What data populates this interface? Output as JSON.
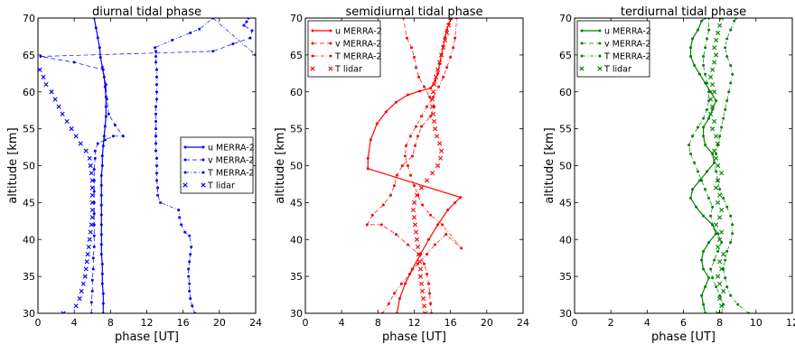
{
  "chart_data": [
    {
      "type": "line",
      "title": "diurnal tidal phase",
      "xlabel": "phase [UT]",
      "ylabel": "altitude [km]",
      "xlim": [
        0,
        24
      ],
      "ylim": [
        30,
        70
      ],
      "xticks": [
        0,
        4,
        8,
        12,
        16,
        20,
        24
      ],
      "yticks": [
        30,
        35,
        40,
        45,
        50,
        55,
        60,
        65,
        70
      ],
      "grid": false,
      "legend_position": "center-right",
      "color": "#0000ff",
      "series": [
        {
          "name": "u MERRA-2",
          "style": "solid-dot",
          "x": [
            7.2,
            7.2,
            7.2,
            7.1,
            7.1,
            7.1,
            7.0,
            7.0,
            7.0,
            7.0,
            7.0,
            7.0,
            7.0,
            7.0,
            7.0,
            7.1,
            7.1,
            7.2,
            7.3,
            7.4,
            7.5,
            7.5,
            7.5,
            7.4,
            7.3,
            7.1,
            6.9,
            6.8,
            6.6,
            6.4,
            6.2
          ],
          "y": [
            30,
            31.33,
            32.67,
            34,
            35.33,
            36.67,
            38,
            39.33,
            40.67,
            42,
            43.33,
            44.67,
            46,
            47.33,
            48.67,
            50,
            51.33,
            52.67,
            54,
            55.33,
            56.67,
            58,
            59.33,
            60.67,
            62,
            63.33,
            64.67,
            66,
            67.33,
            68.67,
            70
          ]
        },
        {
          "name": "v MERRA-2",
          "style": "dashed-dot",
          "x": [
            5.9,
            5.9,
            6.0,
            6.0,
            6.1,
            6.1,
            6.2,
            6.2,
            6.2,
            6.2,
            6.2,
            6.2,
            6.2,
            6.2,
            6.3,
            6.3,
            6.6,
            7.4,
            8.3,
            9.4,
            8.5,
            7.8,
            7.6,
            7.5,
            7.2,
            4.0,
            0.3,
            19.3,
            21.5,
            23.4,
            23.6,
            22.7,
            23.0,
            23.2
          ],
          "y": [
            30,
            31.5,
            33,
            34.5,
            36,
            37.5,
            39,
            40.5,
            42,
            43.5,
            45,
            46.5,
            48,
            49.5,
            51,
            52,
            53,
            53.5,
            54,
            54,
            55.5,
            57,
            59,
            61,
            63,
            64,
            64.8,
            65.5,
            66.5,
            67.3,
            68.3,
            69,
            69.5,
            70
          ]
        },
        {
          "name": "T MERRA-2",
          "style": "dashdot-dot",
          "x": [
            17.3,
            17.0,
            16.8,
            16.7,
            16.7,
            16.6,
            16.6,
            16.7,
            16.8,
            16.9,
            16.7,
            16.2,
            15.8,
            15.6,
            15.5,
            13.5,
            13.2,
            13.2,
            13.1,
            13.1,
            13.1,
            13.1,
            13.0,
            13.0,
            13.0,
            13.0,
            13.0,
            13.0,
            13.0,
            13.1,
            13.1,
            13.1,
            13.1,
            13.1,
            13.0,
            13.0,
            13.0,
            12.9,
            14.8,
            16.8,
            17.8,
            19.3,
            24.0
          ],
          "y": [
            30,
            31,
            32,
            33,
            34,
            35,
            36,
            37,
            38,
            39,
            40.5,
            41,
            42,
            43,
            44,
            45,
            46,
            47,
            48,
            49,
            50,
            51,
            52,
            53,
            54,
            55,
            56,
            57,
            58,
            59,
            60,
            61,
            62,
            63,
            64,
            64.8,
            65.5,
            66,
            67,
            68,
            68.5,
            70,
            65
          ]
        },
        {
          "name": "T lidar",
          "style": "marker-x",
          "x": [
            2.8,
            4.2,
            4.6,
            4.8,
            5.0,
            5.2,
            5.3,
            5.4,
            5.5,
            5.6,
            5.7,
            5.8,
            5.9,
            6.0,
            6.0,
            6.0,
            6.0,
            6.0,
            6.0,
            5.9,
            5.8,
            5.7,
            5.3,
            4.7,
            4.2,
            3.7,
            3.2,
            2.7,
            2.3,
            1.9,
            1.5,
            0.9,
            0.6,
            0.2
          ],
          "y": [
            30,
            31,
            32,
            33,
            34,
            35,
            36,
            37,
            38,
            39,
            40,
            41,
            42,
            43,
            44,
            45,
            46,
            47,
            48,
            49,
            50,
            51,
            52,
            53,
            54,
            55,
            56,
            57,
            58,
            59,
            60,
            61,
            62,
            63
          ]
        }
      ]
    },
    {
      "type": "line",
      "title": "semidiurnal tidal phase",
      "xlabel": "phase [UT]",
      "ylabel": "altitude [km]",
      "xlim": [
        0,
        24
      ],
      "ylim": [
        30,
        70
      ],
      "xticks": [
        0,
        4,
        8,
        12,
        16,
        20,
        24
      ],
      "yticks": [
        30,
        35,
        40,
        45,
        50,
        55,
        60,
        65,
        70
      ],
      "grid": false,
      "legend_position": "upper-left",
      "color": "#ff0000",
      "series": [
        {
          "name": "u MERRA-2",
          "style": "solid-dot",
          "x": [
            10.1,
            10.4,
            11.0,
            11.8,
            12.7,
            13.6,
            14.6,
            15.7,
            16.5,
            17.1,
            6.9,
            6.9,
            7.2,
            7.9,
            8.9,
            10.0,
            11.3,
            12.6,
            13.8,
            14.3,
            14.6,
            14.8,
            15.0,
            15.2,
            15.4,
            15.6,
            15.8,
            16.1
          ],
          "y": [
            30,
            32,
            34,
            36,
            38,
            40,
            42,
            44,
            45,
            45.7,
            49.6,
            51,
            53.5,
            55.7,
            57.3,
            58.6,
            59.6,
            60.1,
            60.5,
            61.5,
            62.5,
            63.8,
            65,
            66.2,
            67.4,
            68.4,
            69.2,
            70
          ]
        },
        {
          "name": "v MERRA-2",
          "style": "dashed-dot",
          "x": [
            13.9,
            13.8,
            13.7,
            13.6,
            13.4,
            13.1,
            12.5,
            11.3,
            10.0,
            8.4,
            6.8,
            7.4,
            8.6,
            9.4,
            9.8,
            10.1,
            10.7,
            11.8,
            12.1,
            12.4,
            12.8,
            13.8,
            14.2,
            13.7,
            13.1,
            12.5,
            12.2,
            12.0,
            11.7,
            11.2,
            10.8
          ],
          "y": [
            30,
            31.3,
            32.7,
            34,
            35.3,
            36.7,
            38,
            39.3,
            40.7,
            42,
            42,
            43.3,
            44.7,
            46,
            47.3,
            48.7,
            50,
            51.3,
            52.7,
            54,
            55.3,
            56.7,
            58,
            59.3,
            60.7,
            62,
            63.3,
            64.7,
            66,
            67.3,
            70
          ]
        },
        {
          "name": "T MERRA-2",
          "style": "dashdot-dot",
          "x": [
            8.5,
            9.2,
            9.8,
            10.6,
            11.5,
            12.4,
            13.4,
            14.3,
            15.5,
            17.2,
            15.1,
            13.8,
            12.9,
            12.4,
            12.0,
            11.6,
            11.3,
            11.0,
            11.1,
            11.6,
            12.2,
            12.8,
            13.4,
            14.1,
            14.7,
            15.2,
            15.6,
            16.0,
            16.3,
            16.5,
            16.7
          ],
          "y": [
            30,
            31.3,
            32.7,
            34,
            35.3,
            36.7,
            38,
            39.3,
            40.7,
            38.8,
            42,
            43.3,
            44.7,
            46,
            47.3,
            48.7,
            50,
            51.3,
            52.7,
            54,
            55.3,
            56.7,
            58,
            59.3,
            60.7,
            62,
            63.3,
            64.7,
            66,
            67.3,
            70
          ]
        },
        {
          "name": "T lidar",
          "style": "marker-x",
          "x": [
            13.2,
            13.1,
            13.0,
            12.9,
            12.8,
            12.7,
            12.7,
            12.6,
            12.5,
            12.4,
            12.3,
            12.2,
            12.1,
            12.0,
            11.9,
            12.0,
            12.3,
            12.8,
            13.4,
            14.0,
            14.6,
            14.9,
            15.0,
            14.8,
            14.5,
            14.3,
            14.2,
            14.1,
            14.0,
            14.0,
            14.1,
            14.2,
            14.4,
            14.6,
            14.8,
            15.0,
            15.2,
            15.4,
            15.6,
            15.8,
            16.0
          ],
          "y": [
            30,
            31,
            32,
            33,
            34,
            35,
            36,
            37,
            38,
            39,
            40,
            41,
            42,
            43,
            44,
            45,
            46,
            47,
            48,
            49,
            50,
            51,
            52,
            53,
            54,
            55,
            56,
            57,
            58,
            59,
            60,
            61,
            62,
            63,
            64,
            65,
            66,
            67,
            68,
            69,
            70
          ]
        }
      ]
    },
    {
      "type": "line",
      "title": "terdiurnal tidal phase",
      "xlabel": "phase [UT]",
      "ylabel": "altitude [km]",
      "xlim": [
        0,
        12
      ],
      "ylim": [
        30,
        70
      ],
      "xticks": [
        0,
        2,
        4,
        6,
        8,
        10,
        12
      ],
      "yticks": [
        30,
        35,
        40,
        45,
        50,
        55,
        60,
        65,
        70
      ],
      "grid": false,
      "legend_position": "upper-left",
      "color": "#008000",
      "series": [
        {
          "name": "u MERRA-2",
          "style": "solid-dot",
          "x": [
            7.2,
            7.1,
            7.0,
            7.2,
            7.4,
            7.1,
            7.0,
            7.1,
            7.4,
            7.8,
            7.6,
            7.1,
            6.7,
            6.4,
            6.5,
            6.9,
            7.3,
            7.7,
            7.6,
            7.2,
            7.1,
            7.1,
            7.4,
            7.6,
            7.8,
            7.5,
            7.2,
            6.9,
            6.6,
            6.4,
            6.4,
            6.5,
            6.8,
            7.0,
            7.2
          ],
          "y": [
            30,
            31.2,
            32.4,
            33.6,
            34.8,
            36,
            37.2,
            38.4,
            39.6,
            40.8,
            42,
            43.2,
            44.4,
            45.6,
            46.8,
            48,
            49.2,
            50.4,
            51.6,
            52.8,
            54,
            55.2,
            56.4,
            57.6,
            58.8,
            60,
            61.2,
            62.4,
            63.6,
            64.8,
            66,
            67.2,
            68.4,
            69.6,
            70
          ]
        },
        {
          "name": "v MERRA-2",
          "style": "dashed-dot",
          "x": [
            8.1,
            8.2,
            8.0,
            7.8,
            7.6,
            7.5,
            7.7,
            7.9,
            8.1,
            7.9,
            7.6,
            7.5,
            7.6,
            7.4,
            7.2,
            7.0,
            6.8,
            6.6,
            6.4,
            6.3,
            6.5,
            6.8,
            7.1,
            7.3,
            7.4,
            7.4,
            7.3,
            7.2,
            7.1,
            7.1,
            7.2,
            7.3,
            7.4,
            7.4
          ],
          "y": [
            30,
            31.2,
            32.4,
            33.6,
            34.8,
            36,
            37.2,
            38.4,
            39.6,
            40.8,
            42,
            43.2,
            44.4,
            45.6,
            46.8,
            48,
            49.2,
            50.4,
            51.6,
            52.8,
            54,
            55.2,
            56.4,
            57.6,
            58.8,
            60,
            61.2,
            62.4,
            63.6,
            64.8,
            66,
            67.2,
            68.4,
            70
          ]
        },
        {
          "name": "T MERRA-2",
          "style": "dashdot-dot",
          "x": [
            9.6,
            9.0,
            8.6,
            8.4,
            8.3,
            8.2,
            8.3,
            8.4,
            8.6,
            8.7,
            8.7,
            8.6,
            8.4,
            8.2,
            8.0,
            7.9,
            7.8,
            7.7,
            7.8,
            7.9,
            8.0,
            8.1,
            8.2,
            8.3,
            8.4,
            8.5,
            8.6,
            8.7,
            8.6,
            8.4,
            8.3,
            8.4,
            8.6,
            8.8,
            8.9
          ],
          "y": [
            30,
            31.2,
            32.4,
            33.6,
            34.8,
            36,
            37.2,
            38.4,
            39.6,
            40.8,
            42,
            43.2,
            44.4,
            45.6,
            46.8,
            48,
            49.2,
            50.4,
            51.6,
            52.8,
            54,
            55.2,
            56.4,
            57.6,
            58.8,
            60,
            61.2,
            62.4,
            63.6,
            64.8,
            66,
            67.2,
            68.4,
            69.6,
            70
          ]
        },
        {
          "name": "T lidar",
          "style": "marker-x",
          "x": [
            7.9,
            8.1,
            8.0,
            8.2,
            8.0,
            7.9,
            8.1,
            8.0,
            8.2,
            7.9,
            8.0,
            8.1,
            7.8,
            8.0,
            8.1,
            7.9,
            8.0,
            7.8,
            7.9,
            8.1,
            7.9,
            7.8,
            7.7,
            7.9,
            7.8,
            7.6,
            7.7,
            7.5,
            7.6,
            7.5,
            7.7,
            7.6,
            7.5,
            7.6,
            7.7,
            7.8,
            7.7,
            7.8,
            7.9,
            8.0,
            8.1
          ],
          "y": [
            30,
            31,
            32,
            33,
            34,
            35,
            36,
            37,
            38,
            39,
            40,
            41,
            42,
            43,
            44,
            45,
            46,
            47,
            48,
            49,
            50,
            51,
            52,
            53,
            54,
            55,
            56,
            57,
            58,
            59,
            60,
            61,
            62,
            63,
            64,
            65,
            66,
            67,
            68,
            69,
            70
          ]
        }
      ]
    }
  ]
}
